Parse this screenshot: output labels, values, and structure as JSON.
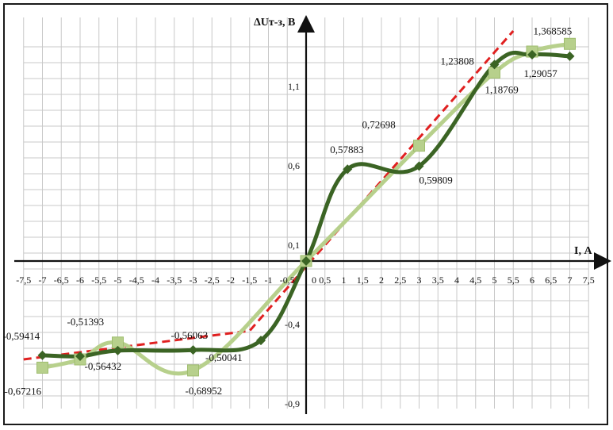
{
  "chart_data": {
    "type": "line",
    "ylabel": "ΔUт-з, В",
    "xlabel": "I, А",
    "xlim": [
      -7.5,
      7.5
    ],
    "ylim": [
      -0.9,
      1.4
    ],
    "x_tick_labels": [
      "-7,5",
      "-7",
      "-6,5",
      "-6",
      "-5,5",
      "-5",
      "-4,5",
      "-4",
      "-3,5",
      "-3",
      "-2,5",
      "-2",
      "-1,5",
      "-1",
      "-0,5",
      "0",
      "0,5",
      "1",
      "1,5",
      "2",
      "2,5",
      "3",
      "3,5",
      "4",
      "4,5",
      "5",
      "5,5",
      "6",
      "6,5",
      "7",
      "7,5"
    ],
    "y_tick_labels": [
      {
        "value": 1.1,
        "label": "1,1"
      },
      {
        "value": 0.6,
        "label": "0,6"
      },
      {
        "value": 0.1,
        "label": "0,1"
      },
      {
        "value": -0.4,
        "label": "-0,4"
      },
      {
        "value": -0.9,
        "label": "-0,9"
      }
    ],
    "grid": true,
    "series": [
      {
        "style": "dark-diamond",
        "color": "#3b6424",
        "points": [
          {
            "x": -7,
            "y": -0.59414,
            "label": "-0,59414"
          },
          {
            "x": -6,
            "y": -0.6
          },
          {
            "x": -5,
            "y": -0.56432,
            "label": "-0,56432"
          },
          {
            "x": -3,
            "y": -0.56063,
            "label": "-0,56063"
          },
          {
            "x": -1.2,
            "y": -0.50041,
            "label": "-0,50041"
          },
          {
            "x": 0,
            "y": 0
          },
          {
            "x": 1.1,
            "y": 0.57883,
            "label": "0,57883"
          },
          {
            "x": 3,
            "y": 0.59809,
            "label": "0,59809"
          },
          {
            "x": 5,
            "y": 1.23808,
            "label": "1,23808"
          },
          {
            "x": 6,
            "y": 1.3
          },
          {
            "x": 7,
            "y": 1.29057,
            "label": "1,29057"
          }
        ]
      },
      {
        "style": "light-square",
        "color": "#b7d08c",
        "points": [
          {
            "x": -7,
            "y": -0.67216,
            "label": "-0,67216"
          },
          {
            "x": -6,
            "y": -0.62
          },
          {
            "x": -5,
            "y": -0.51393,
            "label": "-0,51393"
          },
          {
            "x": -3,
            "y": -0.68952,
            "label": "-0,68952"
          },
          {
            "x": 0,
            "y": 0
          },
          {
            "x": 3,
            "y": 0.72698,
            "label": "0,72698"
          },
          {
            "x": 5,
            "y": 1.18769,
            "label": "1,18769"
          },
          {
            "x": 6,
            "y": 1.32
          },
          {
            "x": 7,
            "y": 1.368585,
            "label": "1,368585"
          }
        ]
      }
    ],
    "trendlines": [
      {
        "style": "red-dashed",
        "color": "#e02020",
        "points": [
          [
            -7.5,
            -0.62
          ],
          [
            -1.5,
            -0.44
          ],
          [
            5.5,
            1.45
          ]
        ]
      }
    ]
  }
}
